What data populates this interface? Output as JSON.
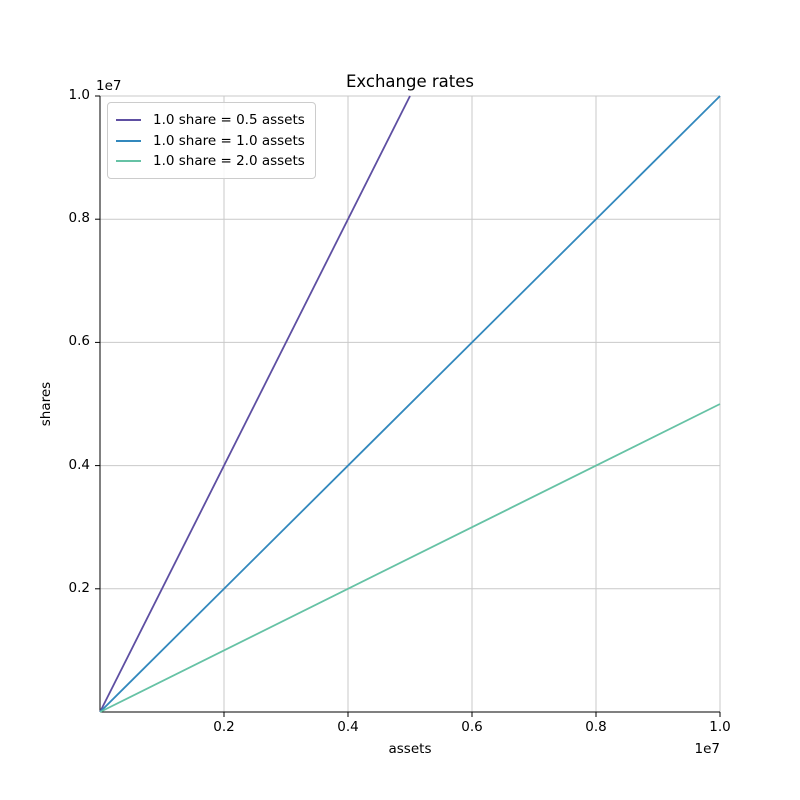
{
  "chart_data": {
    "type": "line",
    "title": "Exchange rates",
    "xlabel": "assets",
    "ylabel": "shares",
    "axis_offset_label": "1e7",
    "xlim": [
      0,
      10000000
    ],
    "ylim": [
      0,
      10000000
    ],
    "xticks": [
      2000000,
      4000000,
      6000000,
      8000000,
      10000000
    ],
    "xtick_labels": [
      "0.2",
      "0.4",
      "0.6",
      "0.8",
      "1.0"
    ],
    "yticks": [
      2000000,
      4000000,
      6000000,
      8000000,
      10000000
    ],
    "ytick_labels": [
      "0.2",
      "0.4",
      "0.6",
      "0.8",
      "1.0"
    ],
    "grid": true,
    "grid_color": "#c9c9c9",
    "spine_color": "#000000",
    "legend_position": "upper-left",
    "series": [
      {
        "name": "1.0 share = 0.5 assets",
        "color": "#5e4fa2",
        "points": [
          [
            0,
            0
          ],
          [
            5000000,
            10000000
          ]
        ]
      },
      {
        "name": "1.0 share = 1.0 assets",
        "color": "#3288bd",
        "points": [
          [
            0,
            0
          ],
          [
            10000000,
            10000000
          ]
        ]
      },
      {
        "name": "1.0 share = 2.0 assets",
        "color": "#66c2a5",
        "points": [
          [
            0,
            0
          ],
          [
            10000000,
            5000000
          ]
        ]
      }
    ]
  }
}
